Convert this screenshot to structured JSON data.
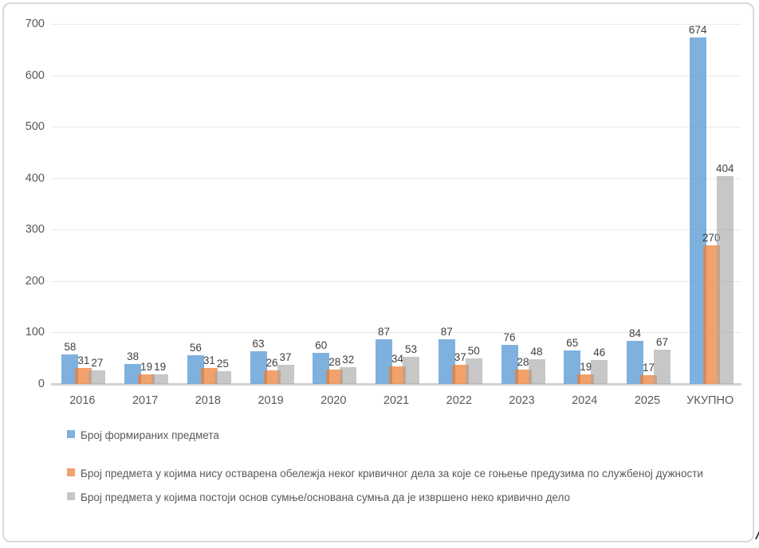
{
  "chart_data": {
    "type": "bar",
    "title": "",
    "xlabel": "",
    "ylabel": "",
    "categories": [
      "2016",
      "2017",
      "2018",
      "2019",
      "2020",
      "2021",
      "2022",
      "2023",
      "2024",
      "2025",
      "УКУПНО"
    ],
    "series": [
      {
        "name": "Број формираних предмета",
        "color": "#5B9BD5",
        "fill_opacity": 0.78,
        "values": [
          58,
          38,
          56,
          63,
          60,
          87,
          87,
          76,
          65,
          84,
          674
        ]
      },
      {
        "name": "Број предмета у којима нису остварена обележја неког кривичног дела за које се гоњење предузима по службеној дужности",
        "color": "#ED7D31",
        "fill_opacity": 0.72,
        "values": [
          31,
          19,
          31,
          26,
          28,
          34,
          37,
          28,
          19,
          17,
          270
        ]
      },
      {
        "name": "Број предмета у којима постоји основ сумње/основана сумња да је извршено неко кривично дело",
        "color": "#A5A5A5",
        "fill_opacity": 0.62,
        "values": [
          27,
          19,
          25,
          37,
          32,
          53,
          50,
          48,
          46,
          67,
          404
        ]
      }
    ],
    "y_ticks": [
      0,
      100,
      200,
      300,
      400,
      500,
      600,
      700
    ],
    "ylim": [
      0,
      700
    ],
    "grid": true,
    "legend_position": "bottom",
    "data_labels": true
  },
  "decoration": {
    "corner_mark": "/"
  }
}
